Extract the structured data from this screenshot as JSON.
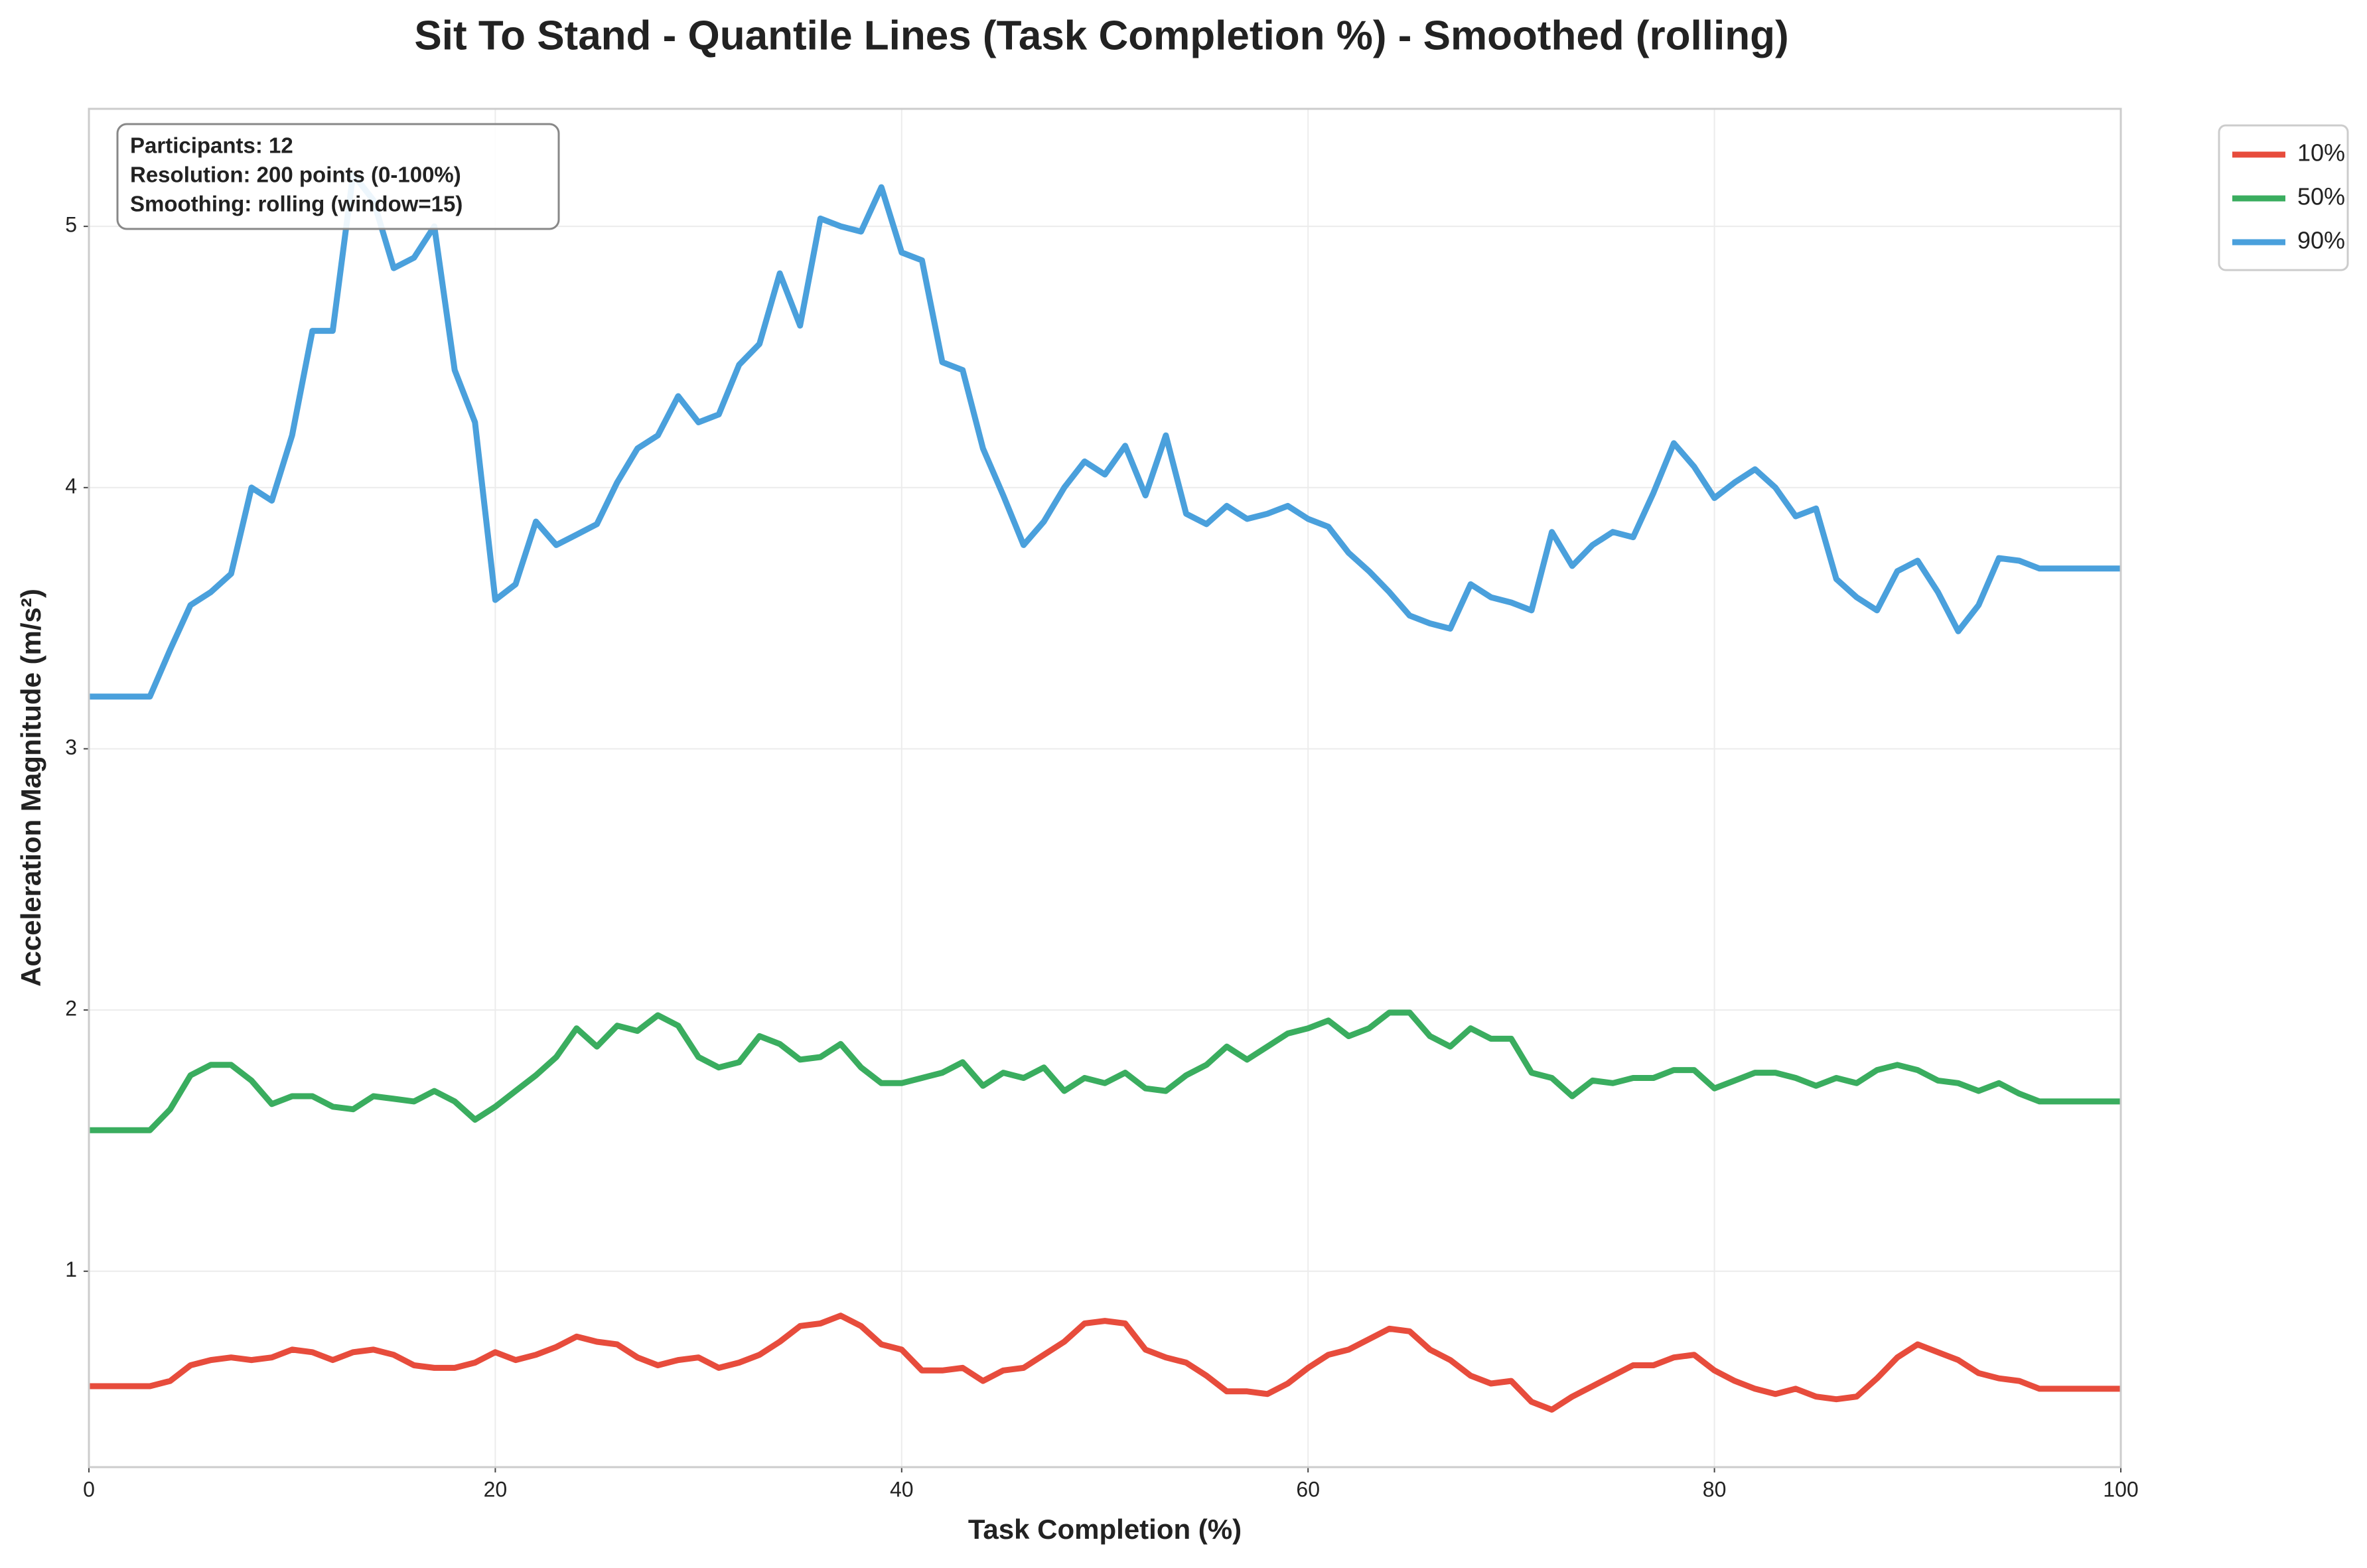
{
  "chart_data": {
    "type": "line",
    "title": "Sit To Stand - Quantile Lines (Task Completion %) - Smoothed (rolling)",
    "xlabel": "Task Completion (%)",
    "ylabel": "Acceleration Magnitude (m/s²)",
    "annotation": [
      "Participants: 12",
      "Resolution: 200 points (0-100%)",
      "Smoothing: rolling (window=15)"
    ],
    "legend": "outside upper right",
    "grid": true,
    "xlim": [
      0,
      100
    ],
    "ylim": [
      0.25,
      5.45
    ],
    "xticks": [
      0,
      20,
      40,
      60,
      80,
      100
    ],
    "yticks": [
      1,
      2,
      3,
      4,
      5
    ],
    "x": [
      0,
      1,
      2,
      3,
      4,
      5,
      6,
      7,
      8,
      9,
      10,
      11,
      12,
      13,
      14,
      15,
      16,
      17,
      18,
      19,
      20,
      21,
      22,
      23,
      24,
      25,
      26,
      27,
      28,
      29,
      30,
      31,
      32,
      33,
      34,
      35,
      36,
      37,
      38,
      39,
      40,
      41,
      42,
      43,
      44,
      45,
      46,
      47,
      48,
      49,
      50,
      51,
      52,
      53,
      54,
      55,
      56,
      57,
      58,
      59,
      60,
      61,
      62,
      63,
      64,
      65,
      66,
      67,
      68,
      69,
      70,
      71,
      72,
      73,
      74,
      75,
      76,
      77,
      78,
      79,
      80,
      81,
      82,
      83,
      84,
      85,
      86,
      87,
      88,
      89,
      90,
      91,
      92,
      93,
      94,
      95,
      96,
      97,
      98,
      99,
      100
    ],
    "series": [
      {
        "name": "10%",
        "color": "#e74c3c",
        "values": [
          0.56,
          0.56,
          0.56,
          0.56,
          0.58,
          0.64,
          0.66,
          0.67,
          0.66,
          0.67,
          0.7,
          0.69,
          0.66,
          0.69,
          0.7,
          0.68,
          0.64,
          0.63,
          0.63,
          0.65,
          0.69,
          0.66,
          0.68,
          0.71,
          0.75,
          0.73,
          0.72,
          0.67,
          0.64,
          0.66,
          0.67,
          0.63,
          0.65,
          0.68,
          0.73,
          0.79,
          0.8,
          0.83,
          0.79,
          0.72,
          0.7,
          0.62,
          0.62,
          0.63,
          0.58,
          0.62,
          0.63,
          0.68,
          0.73,
          0.8,
          0.81,
          0.8,
          0.7,
          0.67,
          0.65,
          0.6,
          0.54,
          0.54,
          0.53,
          0.57,
          0.63,
          0.68,
          0.7,
          0.74,
          0.78,
          0.77,
          0.7,
          0.66,
          0.6,
          0.57,
          0.58,
          0.5,
          0.47,
          0.52,
          0.56,
          0.6,
          0.64,
          0.64,
          0.67,
          0.68,
          0.62,
          0.58,
          0.55,
          0.53,
          0.55,
          0.52,
          0.51,
          0.52,
          0.59,
          0.67,
          0.72,
          0.69,
          0.66,
          0.61,
          0.59,
          0.58,
          0.55,
          0.55,
          0.55,
          0.55,
          0.55
        ]
      },
      {
        "name": "50%",
        "color": "#3aad5f",
        "values": [
          1.54,
          1.54,
          1.54,
          1.54,
          1.62,
          1.75,
          1.79,
          1.79,
          1.73,
          1.64,
          1.67,
          1.67,
          1.63,
          1.62,
          1.67,
          1.66,
          1.65,
          1.69,
          1.65,
          1.58,
          1.63,
          1.69,
          1.75,
          1.82,
          1.93,
          1.86,
          1.94,
          1.92,
          1.98,
          1.94,
          1.82,
          1.78,
          1.8,
          1.9,
          1.87,
          1.81,
          1.82,
          1.87,
          1.78,
          1.72,
          1.72,
          1.74,
          1.76,
          1.8,
          1.71,
          1.76,
          1.74,
          1.78,
          1.69,
          1.74,
          1.72,
          1.76,
          1.7,
          1.69,
          1.75,
          1.79,
          1.86,
          1.81,
          1.86,
          1.91,
          1.93,
          1.96,
          1.9,
          1.93,
          1.99,
          1.99,
          1.9,
          1.86,
          1.93,
          1.89,
          1.89,
          1.76,
          1.74,
          1.67,
          1.73,
          1.72,
          1.74,
          1.74,
          1.77,
          1.77,
          1.7,
          1.73,
          1.76,
          1.76,
          1.74,
          1.71,
          1.74,
          1.72,
          1.77,
          1.79,
          1.77,
          1.73,
          1.72,
          1.69,
          1.72,
          1.68,
          1.65,
          1.65,
          1.65,
          1.65,
          1.65
        ]
      },
      {
        "name": "90%",
        "color": "#4aa0dc",
        "values": [
          3.2,
          3.2,
          3.2,
          3.2,
          3.38,
          3.55,
          3.6,
          3.67,
          4.0,
          3.95,
          4.2,
          4.6,
          4.6,
          5.2,
          5.1,
          4.84,
          4.88,
          5.0,
          4.45,
          4.25,
          3.57,
          3.63,
          3.87,
          3.78,
          3.82,
          3.86,
          4.02,
          4.15,
          4.2,
          4.35,
          4.25,
          4.28,
          4.47,
          4.55,
          4.82,
          4.62,
          5.03,
          5.0,
          4.98,
          5.15,
          4.9,
          4.87,
          4.48,
          4.45,
          4.15,
          3.97,
          3.78,
          3.87,
          4.0,
          4.1,
          4.05,
          4.16,
          3.97,
          4.2,
          3.9,
          3.86,
          3.93,
          3.88,
          3.9,
          3.93,
          3.88,
          3.85,
          3.75,
          3.68,
          3.6,
          3.51,
          3.48,
          3.46,
          3.63,
          3.58,
          3.56,
          3.53,
          3.83,
          3.7,
          3.78,
          3.83,
          3.81,
          3.98,
          4.17,
          4.08,
          3.96,
          4.02,
          4.07,
          4.0,
          3.89,
          3.92,
          3.65,
          3.58,
          3.53,
          3.68,
          3.72,
          3.6,
          3.45,
          3.55,
          3.73,
          3.72,
          3.69,
          3.69,
          3.69,
          3.69,
          3.69
        ]
      }
    ]
  }
}
